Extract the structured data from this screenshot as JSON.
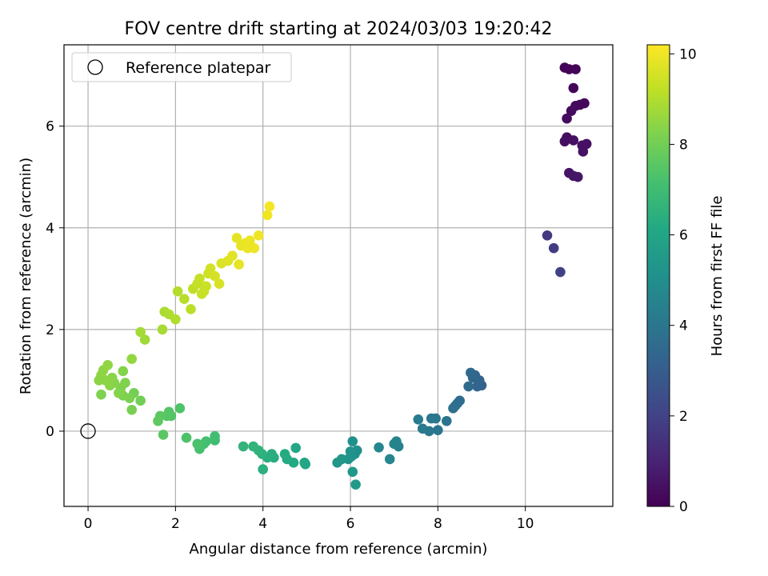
{
  "chart_data": {
    "type": "scatter",
    "title": "FOV centre drift starting at 2024/03/03 19:20:42",
    "xlabel": "Angular distance from reference (arcmin)",
    "ylabel": "Rotation from reference (arcmin)",
    "xlim": [
      -0.55,
      12.0
    ],
    "ylim": [
      -1.48,
      7.6
    ],
    "xticks": [
      0,
      2,
      4,
      6,
      8,
      10
    ],
    "yticks": [
      0,
      2,
      4,
      6
    ],
    "grid": true,
    "legend": {
      "position": "top-left",
      "entries": [
        "Reference platepar"
      ]
    },
    "reference_point": {
      "x": 0,
      "y": 0
    },
    "colorbar": {
      "label": "Hours from first FF file",
      "range": [
        0,
        10.2
      ],
      "ticks": [
        0,
        2,
        4,
        6,
        8,
        10
      ],
      "colormap": "viridis"
    },
    "points": [
      [
        10.9,
        7.15,
        0.05
      ],
      [
        11.0,
        7.12,
        0.08
      ],
      [
        11.15,
        7.12,
        0.1
      ],
      [
        11.1,
        6.75,
        0.15
      ],
      [
        11.35,
        6.45,
        0.2
      ],
      [
        11.25,
        6.42,
        0.22
      ],
      [
        11.15,
        6.4,
        0.25
      ],
      [
        11.05,
        6.3,
        0.28
      ],
      [
        10.95,
        6.15,
        0.3
      ],
      [
        10.95,
        5.78,
        0.35
      ],
      [
        10.9,
        5.7,
        0.38
      ],
      [
        11.1,
        5.72,
        0.4
      ],
      [
        11.3,
        5.62,
        0.42
      ],
      [
        11.4,
        5.65,
        0.45
      ],
      [
        11.32,
        5.5,
        0.48
      ],
      [
        11.0,
        5.08,
        0.55
      ],
      [
        11.1,
        5.02,
        0.58
      ],
      [
        11.2,
        5.0,
        0.6
      ],
      [
        10.5,
        3.85,
        1.7
      ],
      [
        10.65,
        3.6,
        1.8
      ],
      [
        10.8,
        3.13,
        1.9
      ],
      [
        9.0,
        0.9,
        3.2
      ],
      [
        8.95,
        1.0,
        3.25
      ],
      [
        8.9,
        0.88,
        3.3
      ],
      [
        8.85,
        1.1,
        3.35
      ],
      [
        8.8,
        1.05,
        3.4
      ],
      [
        8.75,
        1.15,
        3.45
      ],
      [
        8.7,
        0.88,
        3.5
      ],
      [
        8.5,
        0.6,
        3.6
      ],
      [
        8.45,
        0.55,
        3.65
      ],
      [
        8.4,
        0.5,
        3.7
      ],
      [
        8.35,
        0.45,
        3.75
      ],
      [
        8.2,
        0.2,
        3.9
      ],
      [
        8.0,
        0.02,
        3.95
      ],
      [
        7.95,
        0.25,
        4.0
      ],
      [
        7.85,
        0.25,
        4.05
      ],
      [
        7.8,
        0.0,
        4.1
      ],
      [
        7.65,
        0.05,
        4.15
      ],
      [
        7.55,
        0.23,
        4.2
      ],
      [
        7.1,
        -0.3,
        4.5
      ],
      [
        7.05,
        -0.2,
        4.55
      ],
      [
        7.0,
        -0.25,
        4.6
      ],
      [
        6.9,
        -0.55,
        4.65
      ],
      [
        6.65,
        -0.32,
        4.7
      ],
      [
        6.15,
        -0.38,
        5.0
      ],
      [
        6.1,
        -0.45,
        5.05
      ],
      [
        6.05,
        -0.2,
        5.1
      ],
      [
        6.02,
        -0.5,
        5.15
      ],
      [
        6.0,
        -0.4,
        5.2
      ],
      [
        5.95,
        -0.55,
        5.25
      ],
      [
        5.8,
        -0.55,
        5.3
      ],
      [
        5.7,
        -0.62,
        5.35
      ],
      [
        6.05,
        -0.8,
        5.4
      ],
      [
        6.12,
        -1.05,
        5.45
      ],
      [
        4.97,
        -0.65,
        6.0
      ],
      [
        4.95,
        -0.62,
        6.05
      ],
      [
        4.75,
        -0.33,
        6.1
      ],
      [
        4.7,
        -0.62,
        6.15
      ],
      [
        4.55,
        -0.55,
        6.2
      ],
      [
        4.5,
        -0.45,
        6.25
      ],
      [
        4.25,
        -0.52,
        6.3
      ],
      [
        4.2,
        -0.45,
        6.35
      ],
      [
        4.1,
        -0.52,
        6.4
      ],
      [
        4.0,
        -0.75,
        6.45
      ],
      [
        3.98,
        -0.45,
        6.5
      ],
      [
        3.9,
        -0.38,
        6.55
      ],
      [
        3.78,
        -0.3,
        6.6
      ],
      [
        3.55,
        -0.3,
        6.65
      ],
      [
        2.9,
        -0.18,
        7.0
      ],
      [
        2.9,
        -0.1,
        7.05
      ],
      [
        2.7,
        -0.2,
        7.1
      ],
      [
        2.65,
        -0.25,
        7.15
      ],
      [
        2.55,
        -0.35,
        7.2
      ],
      [
        2.5,
        -0.25,
        7.25
      ],
      [
        2.25,
        -0.13,
        7.3
      ],
      [
        2.1,
        0.45,
        7.35
      ],
      [
        1.9,
        0.3,
        7.4
      ],
      [
        1.85,
        0.38,
        7.45
      ],
      [
        1.8,
        0.3,
        7.5
      ],
      [
        1.72,
        -0.07,
        7.55
      ],
      [
        1.65,
        0.3,
        7.6
      ],
      [
        1.6,
        0.2,
        7.65
      ],
      [
        1.2,
        0.6,
        8.0
      ],
      [
        1.05,
        0.75,
        8.05
      ],
      [
        1.0,
        0.42,
        8.1
      ],
      [
        0.95,
        0.65,
        8.15
      ],
      [
        0.8,
        0.7,
        8.2
      ],
      [
        0.75,
        0.85,
        8.25
      ],
      [
        0.7,
        0.75,
        8.3
      ],
      [
        0.6,
        0.95,
        8.35
      ],
      [
        0.5,
        0.9,
        8.4
      ],
      [
        0.4,
        1.0,
        8.45
      ],
      [
        0.3,
        1.1,
        8.5
      ],
      [
        0.35,
        1.2,
        8.45
      ],
      [
        0.45,
        1.3,
        8.5
      ],
      [
        0.55,
        1.05,
        8.4
      ],
      [
        0.8,
        1.18,
        8.3
      ],
      [
        1.0,
        1.42,
        8.55
      ],
      [
        0.3,
        0.72,
        8.2
      ],
      [
        0.25,
        1.0,
        8.4
      ],
      [
        0.85,
        0.95,
        8.25
      ],
      [
        1.2,
        1.95,
        8.8
      ],
      [
        1.3,
        1.8,
        8.75
      ],
      [
        1.7,
        2.0,
        8.85
      ],
      [
        1.75,
        2.35,
        8.9
      ],
      [
        1.85,
        2.3,
        8.95
      ],
      [
        2.0,
        2.2,
        9.0
      ],
      [
        2.05,
        2.75,
        9.05
      ],
      [
        2.2,
        2.6,
        9.1
      ],
      [
        2.35,
        2.4,
        9.15
      ],
      [
        2.4,
        2.8,
        9.2
      ],
      [
        2.5,
        2.9,
        9.25
      ],
      [
        2.55,
        3.0,
        9.3
      ],
      [
        2.6,
        2.7,
        9.35
      ],
      [
        2.7,
        2.85,
        9.4
      ],
      [
        2.75,
        3.1,
        9.45
      ],
      [
        2.8,
        3.2,
        9.5
      ],
      [
        2.9,
        3.05,
        9.55
      ],
      [
        3.0,
        2.9,
        9.6
      ],
      [
        3.05,
        3.3,
        9.65
      ],
      [
        3.2,
        3.35,
        9.7
      ],
      [
        3.3,
        3.45,
        9.75
      ],
      [
        3.4,
        3.8,
        9.8
      ],
      [
        3.45,
        3.28,
        9.82
      ],
      [
        3.5,
        3.65,
        9.85
      ],
      [
        3.6,
        3.7,
        9.9
      ],
      [
        3.7,
        3.75,
        9.92
      ],
      [
        3.8,
        3.6,
        9.95
      ],
      [
        3.9,
        3.85,
        9.97
      ],
      [
        4.1,
        4.25,
        10.0
      ],
      [
        4.15,
        4.42,
        10.05
      ],
      [
        3.65,
        3.6,
        9.9
      ],
      [
        2.65,
        2.75,
        9.35
      ]
    ]
  }
}
